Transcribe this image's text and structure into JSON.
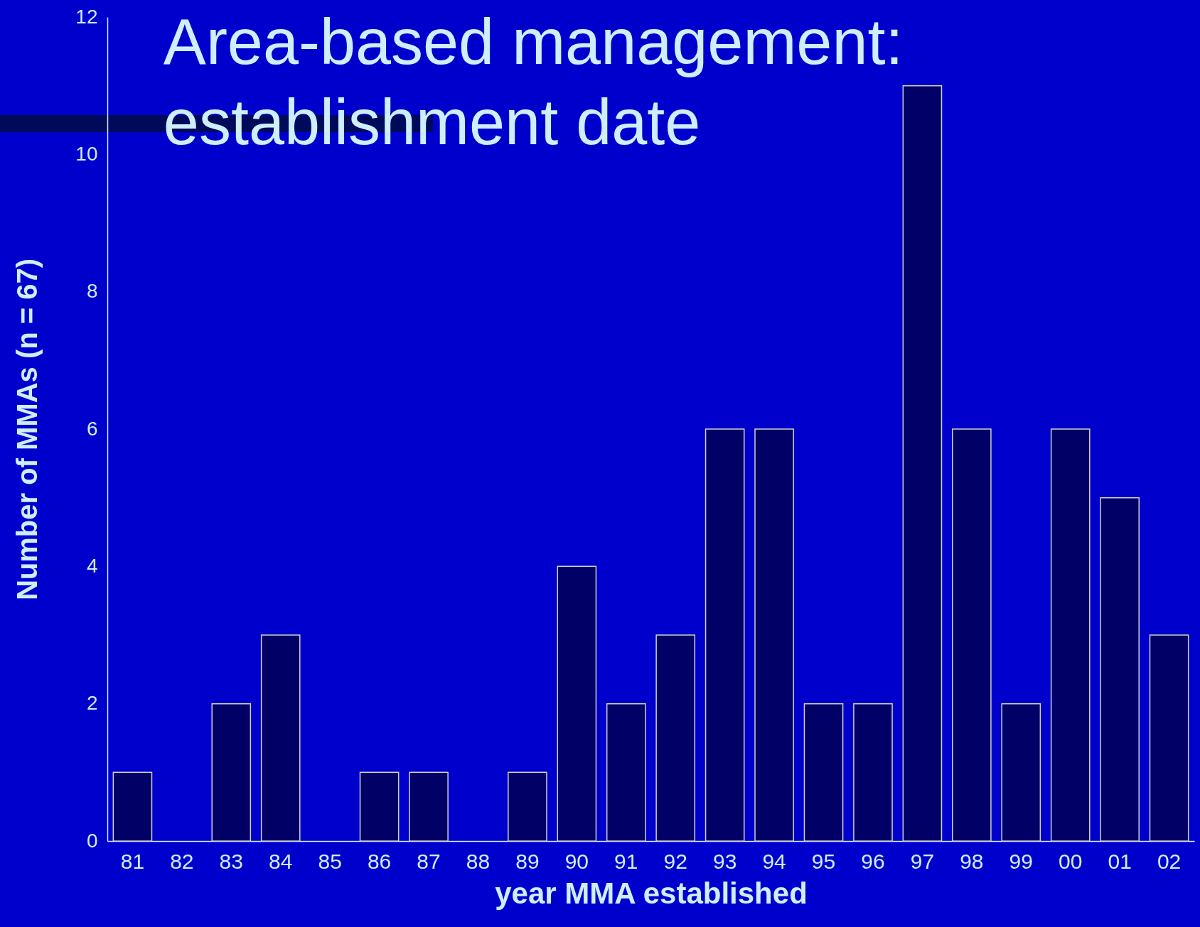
{
  "chart_data": {
    "type": "bar",
    "title": "Area-based management:\nestablishment date",
    "xlabel": "year MMA established",
    "ylabel": "Number of MMAs (n = 67)",
    "categories": [
      "81",
      "82",
      "83",
      "84",
      "85",
      "86",
      "87",
      "88",
      "89",
      "90",
      "91",
      "92",
      "93",
      "94",
      "95",
      "96",
      "97",
      "98",
      "99",
      "00",
      "01",
      "02"
    ],
    "values": [
      1,
      0,
      2,
      3,
      0,
      1,
      1,
      0,
      1,
      4,
      2,
      3,
      6,
      6,
      2,
      2,
      11,
      6,
      2,
      6,
      5,
      3
    ],
    "color": "#000066",
    "ylim": [
      0,
      12
    ],
    "yticks": [
      0,
      2,
      4,
      6,
      8,
      10,
      12
    ],
    "grid": false
  }
}
